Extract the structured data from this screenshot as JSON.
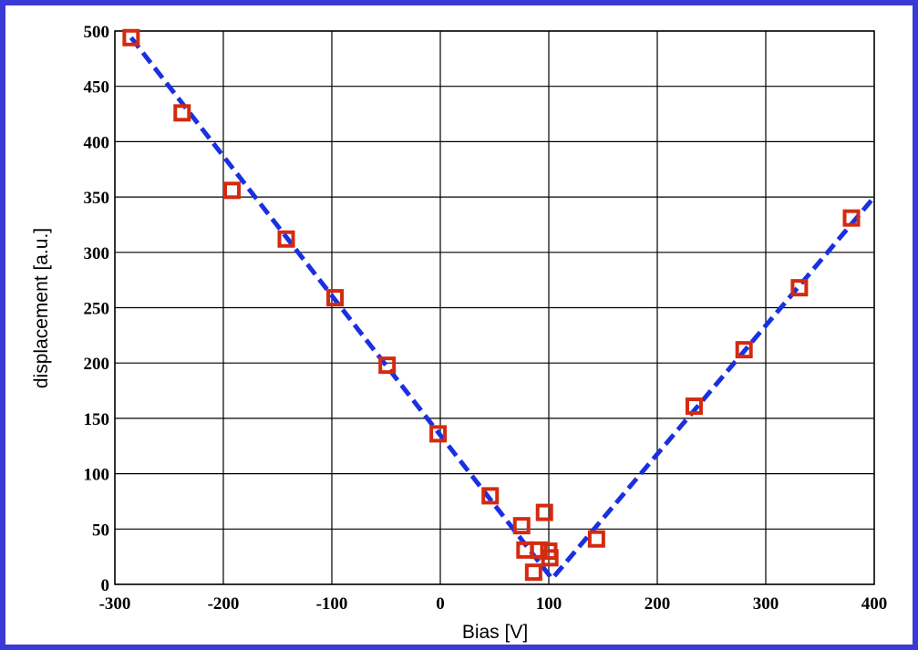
{
  "chart_data": {
    "type": "scatter",
    "title": "",
    "xlabel": "Bias [V]",
    "ylabel": "displacement [a.u.]",
    "xlim": [
      -300,
      400
    ],
    "ylim": [
      0,
      500
    ],
    "xticks": [
      -300,
      -200,
      -100,
      0,
      100,
      200,
      300,
      400
    ],
    "yticks": [
      0,
      50,
      100,
      150,
      200,
      250,
      300,
      350,
      400,
      450,
      500
    ],
    "grid": true,
    "legend": "none",
    "colors": {
      "frame": "#3a3ad6",
      "marker": "#d42a10",
      "fit_line": "#1a30e0",
      "grid": "#000000"
    },
    "series": [
      {
        "style": "open-square-markers",
        "x": [
          -285,
          -238,
          -192,
          -142,
          -97,
          -49,
          -2,
          46,
          75,
          78,
          86,
          91,
          96,
          100,
          101,
          144,
          234,
          280,
          331,
          379
        ],
        "y": [
          494,
          426,
          356,
          312,
          259,
          198,
          136,
          80,
          53,
          31,
          11,
          31,
          65,
          30,
          24,
          41,
          161,
          212,
          268,
          331
        ]
      },
      {
        "style": "dashed-fit-line",
        "x": [
          -285,
          103,
          400
        ],
        "y": [
          494,
          5,
          350
        ]
      }
    ]
  }
}
